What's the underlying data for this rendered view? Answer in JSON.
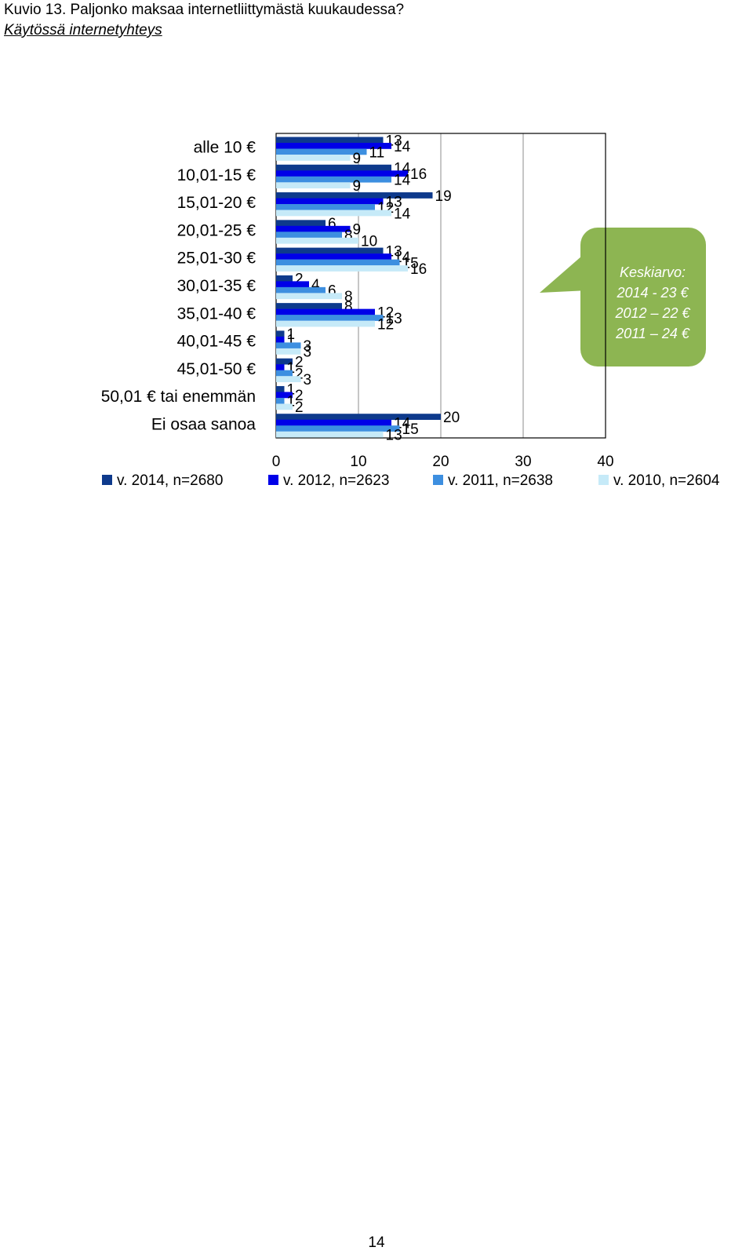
{
  "header": {
    "title": "Kuvio 13. Paljonko maksaa internetliittymästä kuukaudessa?",
    "subtitle": "Käytössä internetyhteys"
  },
  "callout": {
    "heading": "Keskiarvo:",
    "lines": [
      "2014 - 23 €",
      "2012 – 22 €",
      "2011 – 24 €"
    ],
    "color": "#8db552"
  },
  "page_number": "14",
  "chart_data": {
    "type": "bar",
    "orientation": "horizontal",
    "categories": [
      "alle 10 €",
      "10,01-15 €",
      "15,01-20 €",
      "20,01-25 €",
      "25,01-30 €",
      "30,01-35 €",
      "35,01-40 €",
      "40,01-45 €",
      "45,01-50 €",
      "50,01 € tai enemmän",
      "Ei osaa sanoa"
    ],
    "series": [
      {
        "name": "v. 2014, n=2680",
        "color": "#0e3a8c",
        "values": [
          13,
          14,
          19,
          6,
          13,
          2,
          8,
          1,
          2,
          1,
          20
        ]
      },
      {
        "name": "v. 2012, n=2623",
        "color": "#0000e8",
        "values": [
          14,
          16,
          13,
          9,
          14,
          4,
          12,
          1,
          1,
          2,
          14
        ]
      },
      {
        "name": "v. 2011, n=2638",
        "color": "#3d8fe0",
        "values": [
          11,
          14,
          12,
          8,
          15,
          6,
          13,
          3,
          2,
          1,
          15
        ]
      },
      {
        "name": "v. 2010, n=2604",
        "color": "#c6eaf8",
        "values": [
          9,
          9,
          14,
          10,
          16,
          8,
          12,
          3,
          3,
          2,
          13
        ]
      }
    ],
    "xlim": [
      0,
      40
    ],
    "xticks": [
      0,
      10,
      20,
      30,
      40
    ],
    "grid": true,
    "legend": "bottom",
    "data_labels": true
  }
}
